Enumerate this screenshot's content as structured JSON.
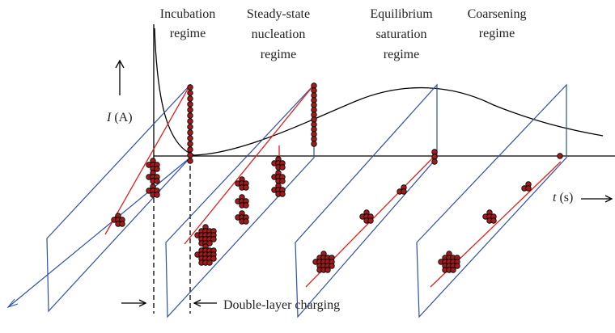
{
  "regimes": [
    {
      "lines": [
        "Incubation",
        "regime"
      ]
    },
    {
      "lines": [
        "Steady-state",
        "nucleation",
        "regime"
      ]
    },
    {
      "lines": [
        "Equilibrium",
        "saturation",
        "regime"
      ]
    },
    {
      "lines": [
        "Coarsening",
        "regime"
      ]
    }
  ],
  "current_axis": {
    "symbol": "I",
    "unit": "(A)"
  },
  "time_axis": {
    "symbol": "t",
    "unit": "(s)"
  },
  "annotation": "Double-layer charging"
}
